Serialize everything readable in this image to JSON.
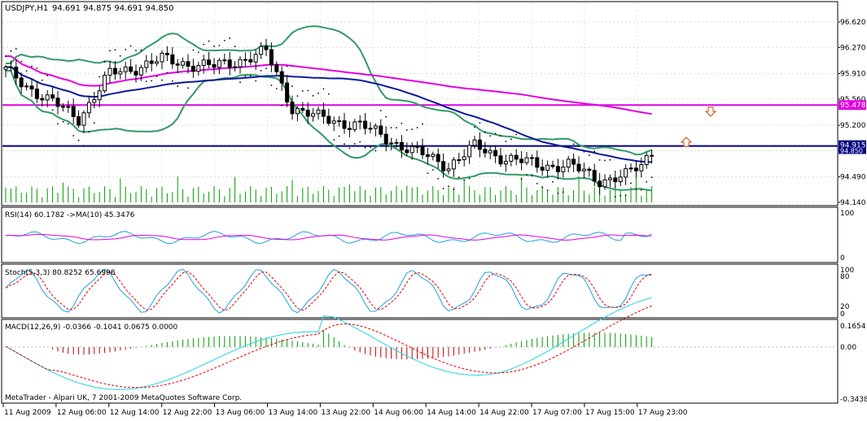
{
  "main": {
    "symbol_label": "USDJPY,H1",
    "ohlc_label": "94.691 94.875 94.691 94.850",
    "price_ticks": [
      "96.620",
      "96.270",
      "95.910",
      "95.560",
      "95.200",
      "94.850",
      "94.490",
      "94.140"
    ],
    "hline_magenta": {
      "value": 95.478,
      "label": "95.478",
      "color": "#e000e0"
    },
    "hline_navy": {
      "value": 94.915,
      "label": "94.915",
      "color": "#000080"
    },
    "bid_label": "94.850",
    "colors": {
      "bull": "#ffffff",
      "bear": "#000000",
      "bands": "#339966",
      "ma_slow": "#e000e0",
      "ma_fast": "#0a1a9a",
      "sar": "#000000",
      "volume": "#009900"
    }
  },
  "rsi": {
    "label": "RSI(14) 60.1782  ->MA(10) 45.3476",
    "scale_top": "100",
    "scale_bottom": "0"
  },
  "stoch": {
    "label": "Stoch(5,3,3) 80.8252 65.6998",
    "scale": [
      "100",
      "80",
      "20",
      "0"
    ]
  },
  "macd": {
    "label": "MACD(12,26,9) -0.0366 -0.1041 0.0675 0.0000",
    "scale": [
      "0.1654",
      "0.00",
      "-0.3438"
    ]
  },
  "footer": {
    "credit": "MetaTrader - Alpari UK, 7 2001-2009 MetaQuotes Software Corp."
  },
  "time_axis": [
    "11 Aug 2009",
    "12 Aug 06:00",
    "12 Aug 14:00",
    "12 Aug 22:00",
    "13 Aug 06:00",
    "13 Aug 14:00",
    "13 Aug 22:00",
    "14 Aug 06:00",
    "14 Aug 14:00",
    "14 Aug 22:00",
    "17 Aug 07:00",
    "17 Aug 15:00",
    "17 Aug 23:00"
  ]
}
